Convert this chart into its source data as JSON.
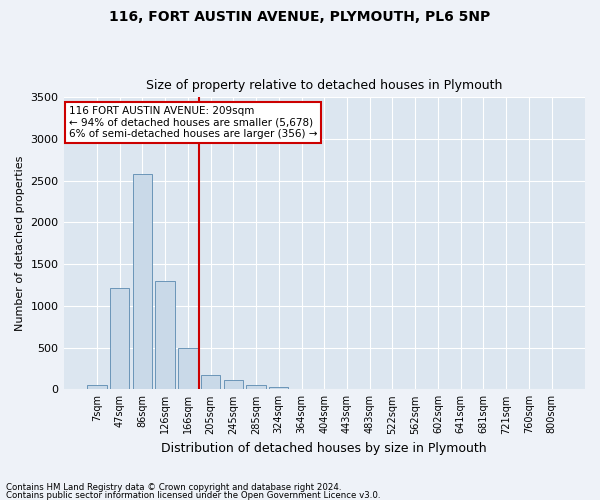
{
  "title1": "116, FORT AUSTIN AVENUE, PLYMOUTH, PL6 5NP",
  "title2": "Size of property relative to detached houses in Plymouth",
  "xlabel": "Distribution of detached houses by size in Plymouth",
  "ylabel": "Number of detached properties",
  "categories": [
    "7sqm",
    "47sqm",
    "86sqm",
    "126sqm",
    "166sqm",
    "205sqm",
    "245sqm",
    "285sqm",
    "324sqm",
    "364sqm",
    "404sqm",
    "443sqm",
    "483sqm",
    "522sqm",
    "562sqm",
    "602sqm",
    "641sqm",
    "681sqm",
    "721sqm",
    "760sqm",
    "800sqm"
  ],
  "values": [
    50,
    1220,
    2580,
    1300,
    500,
    175,
    110,
    50,
    30,
    5,
    0,
    0,
    0,
    0,
    0,
    0,
    0,
    0,
    0,
    0,
    0
  ],
  "bar_color": "#c9d9e8",
  "bar_edge_color": "#5a8ab0",
  "vline_x_index": 4.5,
  "vline_color": "#cc0000",
  "annotation_text": "116 FORT AUSTIN AVENUE: 209sqm\n← 94% of detached houses are smaller (5,678)\n6% of semi-detached houses are larger (356) →",
  "annotation_box_color": "#ffffff",
  "annotation_box_edge": "#cc0000",
  "footnote1": "Contains HM Land Registry data © Crown copyright and database right 2024.",
  "footnote2": "Contains public sector information licensed under the Open Government Licence v3.0.",
  "ylim": [
    0,
    3500
  ],
  "yticks": [
    0,
    500,
    1000,
    1500,
    2000,
    2500,
    3000,
    3500
  ],
  "bg_color": "#eef2f8",
  "plot_bg": "#dce6f0"
}
